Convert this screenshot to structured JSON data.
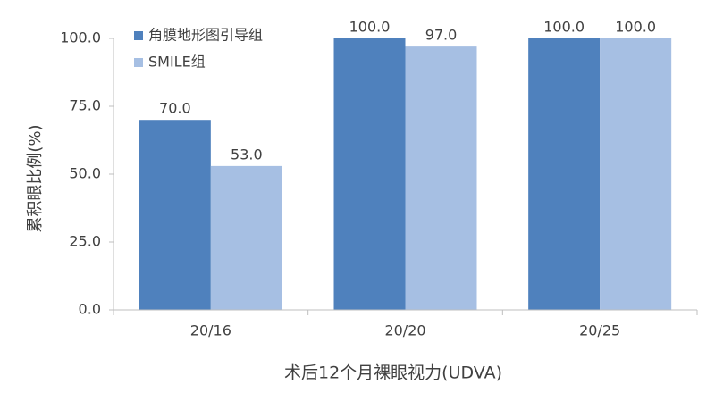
{
  "chart_data": {
    "type": "bar",
    "x_label": "术后12个月裸眼视力(UDVA)",
    "y_label": "累积眼比例(%)",
    "categories": [
      "20/16",
      "20/20",
      "20/25"
    ],
    "series": [
      {
        "name": "角膜地形图引导组",
        "color": "#4f81bd",
        "values": [
          70,
          100,
          100
        ],
        "value_labels": [
          "70.0",
          "100.0",
          "100.0"
        ]
      },
      {
        "name": "SMILE组",
        "color": "#a6bfe3",
        "values": [
          53,
          97,
          100
        ],
        "value_labels": [
          "53.0",
          "97.0",
          "100.0"
        ]
      }
    ],
    "ylim": [
      0,
      100
    ],
    "yticks": [
      {
        "value": 0,
        "label": "0.0"
      },
      {
        "value": 25,
        "label": "25.0"
      },
      {
        "value": 50,
        "label": "50.0"
      },
      {
        "value": 75,
        "label": "75.0"
      },
      {
        "value": 100,
        "label": "100.0"
      }
    ],
    "legend": "top-left"
  }
}
